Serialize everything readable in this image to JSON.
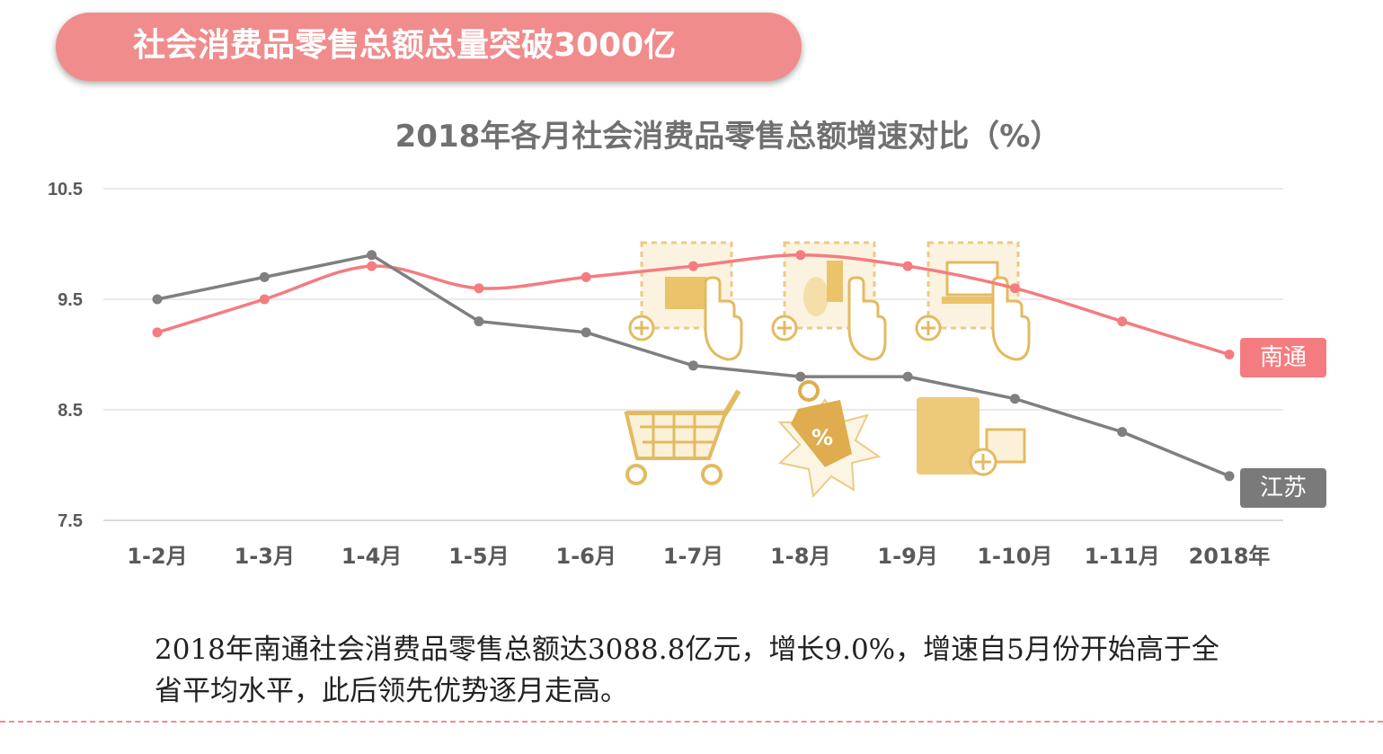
{
  "banner": {
    "text": "社会消费品零售总额总量突破3000亿"
  },
  "chart_data": {
    "type": "line",
    "title": "2018年各月社会消费品零售总额增速对比（%）",
    "categories": [
      "1-2月",
      "1-3月",
      "1-4月",
      "1-5月",
      "1-6月",
      "1-7月",
      "1-8月",
      "1-9月",
      "1-10月",
      "1-11月",
      "2018年"
    ],
    "series": [
      {
        "name": "南通",
        "color": "#f47c80",
        "values": [
          9.2,
          9.5,
          9.8,
          9.6,
          9.7,
          9.8,
          9.9,
          9.8,
          9.6,
          9.3,
          9.0
        ]
      },
      {
        "name": "江苏",
        "color": "#7f7f7f",
        "values": [
          9.5,
          9.7,
          9.9,
          9.3,
          9.2,
          8.9,
          8.8,
          8.8,
          8.6,
          8.3,
          7.9
        ]
      }
    ],
    "ylim": [
      7.5,
      10.5
    ],
    "yticks": [
      "10.5",
      "9.5",
      "8.5",
      "7.5"
    ],
    "grid": true,
    "legend": "right"
  },
  "description": "2018年南通社会消费品零售总额达3088.8亿元，增长9.0%，增速自5月份开始高于全省平均水平，此后领先优势逐月走高。"
}
